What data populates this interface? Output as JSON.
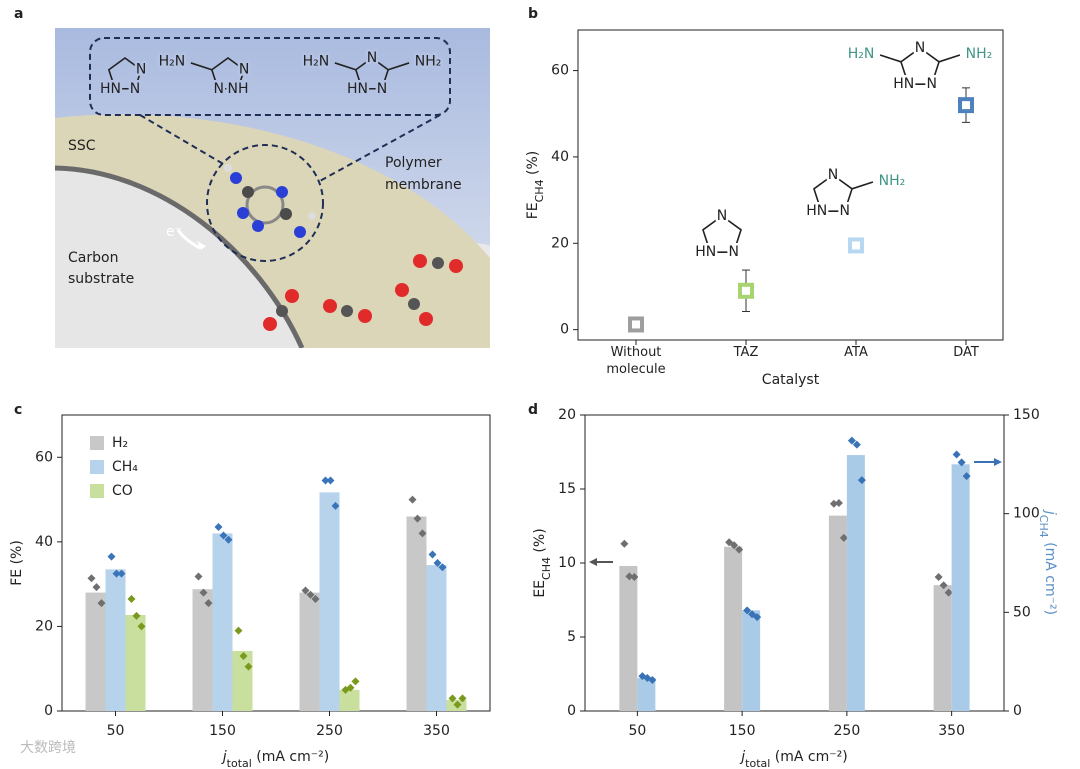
{
  "panel_labels": [
    "a",
    "b",
    "c",
    "d"
  ],
  "illustration": {
    "ssc": "SSC",
    "substrate": [
      "Carbon",
      "substrate"
    ],
    "membrane": [
      "Polymer",
      "membrane"
    ],
    "electron": "e⁻",
    "molecules": [
      [
        "N",
        "N",
        "HN"
      ],
      [
        "H₂N",
        "N",
        "N",
        "NH"
      ],
      [
        "H₂N",
        "N",
        "NH₂",
        "HN",
        "N"
      ]
    ]
  },
  "watermark": "大数跨境",
  "chart_data": [
    {
      "type": "dot_error",
      "xlabel": "Catalyst",
      "ylabel": {
        "text": "FE",
        "sub": "CH4",
        "tail": " (%)"
      },
      "categories": [
        "Without molecule",
        "TAZ",
        "ATA",
        "DAT"
      ],
      "values": [
        1.2,
        9,
        19.5,
        52
      ],
      "errors": [
        1,
        4.8,
        1.5,
        4
      ],
      "colors": [
        "#9e9e9e",
        "#a8d46f",
        "#b8d8f2",
        "#4f82bd"
      ],
      "ylim": [
        -2.4,
        69.4
      ],
      "yticks": [
        0,
        20,
        40,
        60
      ],
      "annotations": [
        [
          "N",
          "HN",
          "N"
        ],
        [
          "N",
          "HN",
          "N",
          "NH₂"
        ],
        [
          "N",
          "H₂N",
          "NH₂",
          "HN",
          "N"
        ]
      ]
    },
    {
      "type": "bar_points",
      "xlabel": {
        "text": "j",
        "sub": "total",
        "tail": " (mA cm⁻²)"
      },
      "ylabel": "FE (%)",
      "categories": [
        50,
        150,
        250,
        350
      ],
      "legend": "upper left",
      "ylim": [
        0,
        70
      ],
      "yticks": [
        0,
        20,
        40,
        60
      ],
      "series": [
        {
          "name": "H₂",
          "color": "#c8c8c8",
          "point_color": "#6f6f6f",
          "values": [
            28,
            28.8,
            28,
            46
          ],
          "points": [
            [
              31.4,
              29.3,
              25.5
            ],
            [
              31.8,
              28,
              25.5
            ],
            [
              28.5,
              27.5,
              26.5
            ],
            [
              50,
              45.5,
              42
            ]
          ]
        },
        {
          "name": "CH₄",
          "color": "#b7d3ec",
          "point_color": "#3b75b9",
          "values": [
            33.5,
            42,
            51.7,
            34.5
          ],
          "points": [
            [
              36.5,
              32.5,
              32.5
            ],
            [
              43.5,
              41.5,
              40.5
            ],
            [
              54.5,
              54.5,
              48.5
            ],
            [
              37,
              35,
              34
            ]
          ]
        },
        {
          "name": "CO",
          "color": "#c8df9e",
          "point_color": "#7a9a1e",
          "values": [
            22.7,
            14.2,
            5,
            2.6
          ],
          "points": [
            [
              26.5,
              22.5,
              20
            ],
            [
              19,
              13,
              10.5
            ],
            [
              5,
              5.5,
              7
            ],
            [
              3,
              1.5,
              3
            ]
          ]
        }
      ]
    },
    {
      "type": "bar_points",
      "xlabel": {
        "text": "j",
        "sub": "total",
        "tail": " (mA cm⁻²)"
      },
      "ylabel": {
        "text": "EE",
        "sub": "CH4",
        "tail": " (%)"
      },
      "y2label": {
        "text": "j",
        "sub": "CH4",
        "tail": " (mA cm⁻²)"
      },
      "categories": [
        50,
        150,
        250,
        350
      ],
      "ylim": [
        0,
        20
      ],
      "yticks": [
        0,
        5,
        10,
        15,
        20
      ],
      "y2lim": [
        0,
        150
      ],
      "y2ticks": [
        0,
        50,
        100,
        150
      ],
      "series": [
        {
          "color": "#c4c4c4",
          "point_color": "#6f6f6f",
          "values": [
            9.8,
            11.1,
            13.2,
            8.5
          ],
          "points": [
            [
              11.3,
              9.1,
              9.05
            ],
            [
              11.4,
              11.2,
              10.9
            ],
            [
              14,
              14.05,
              11.7
            ],
            [
              9.05,
              8.5,
              8
            ]
          ]
        },
        {
          "color": "#a9cbe8",
          "point_color": "#3a73b5",
          "axis": "y2",
          "values": [
            16.7,
            51,
            129.7,
            125
          ],
          "points": [
            [
              17.7,
              16.7,
              15.7
            ],
            [
              51,
              49,
              47.6
            ],
            [
              137,
              135,
              117
            ],
            [
              130,
              126,
              119
            ]
          ]
        }
      ]
    }
  ]
}
